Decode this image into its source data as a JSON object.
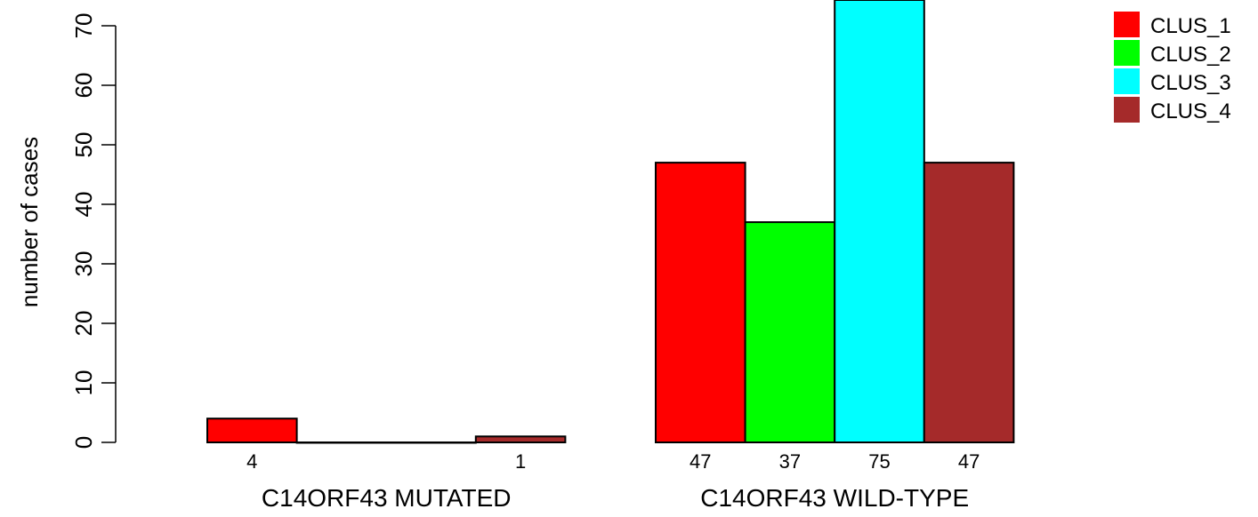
{
  "chart_data": {
    "type": "bar",
    "ylabel": "number of cases",
    "ylim": [
      0,
      75
    ],
    "yticks": [
      0,
      10,
      20,
      30,
      40,
      50,
      60,
      70
    ],
    "groups": [
      "C14ORF43 MUTATED",
      "C14ORF43 WILD-TYPE"
    ],
    "series": [
      {
        "name": "CLUS_1",
        "color": "#ff0000",
        "values": [
          4,
          47
        ],
        "labels": [
          "4",
          "47"
        ]
      },
      {
        "name": "CLUS_2",
        "color": "#00ff00",
        "values": [
          0,
          37
        ],
        "labels": [
          "",
          "37"
        ]
      },
      {
        "name": "CLUS_3",
        "color": "#00ffff",
        "values": [
          0,
          75
        ],
        "labels": [
          "",
          "75"
        ]
      },
      {
        "name": "CLUS_4",
        "color": "#a52a2a",
        "values": [
          1,
          47
        ],
        "labels": [
          "1",
          "47"
        ]
      }
    ],
    "legend_position": "top-right",
    "grid": false
  }
}
